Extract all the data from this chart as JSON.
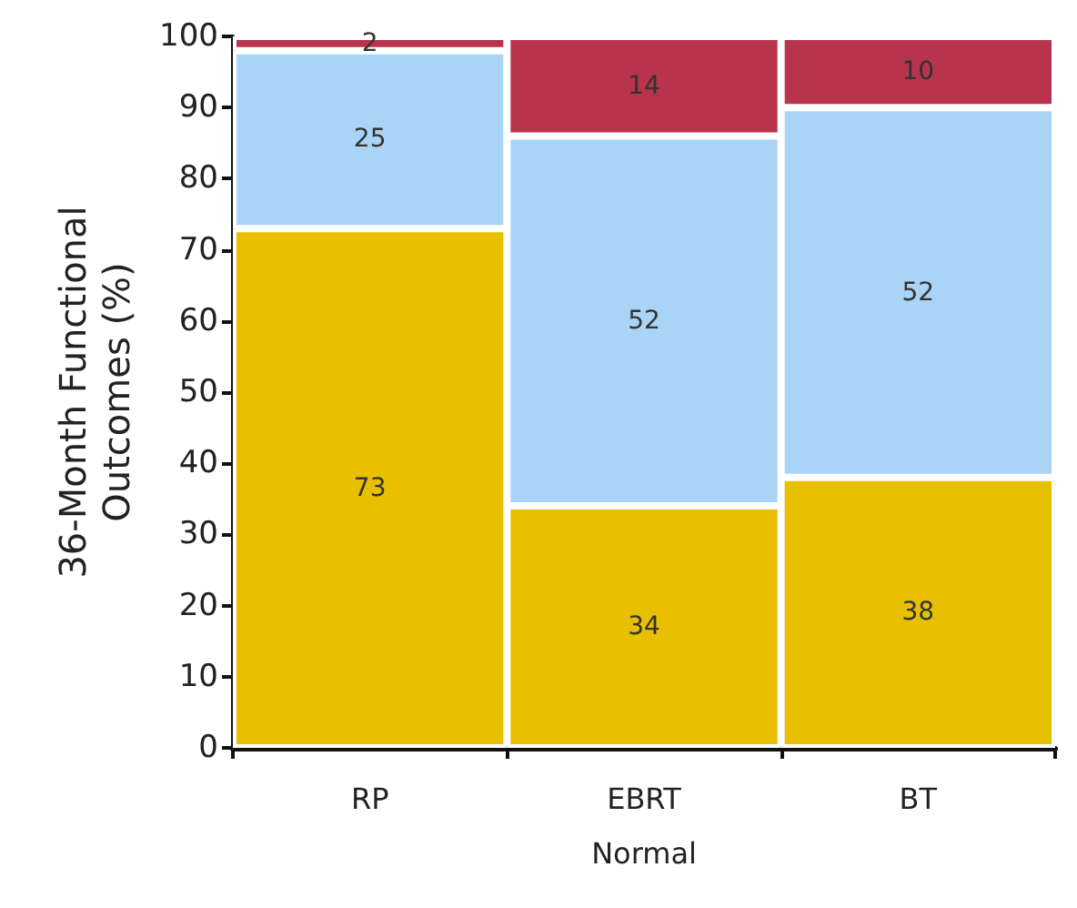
{
  "chart_data": {
    "type": "bar",
    "stacked": true,
    "data_labels": true,
    "ylabel": "36-Month Functional\nOutcomes (%)",
    "xlabel": "Normal",
    "categories": [
      "RP",
      "EBRT",
      "BT"
    ],
    "ylim": [
      0,
      100
    ],
    "yticks": [
      0,
      10,
      20,
      30,
      40,
      50,
      60,
      70,
      80,
      90,
      100
    ],
    "grid": false,
    "series": [
      {
        "color": "#e8c000",
        "values": [
          73,
          34,
          38
        ]
      },
      {
        "color": "#aad4f5",
        "values": [
          25,
          52,
          52
        ]
      },
      {
        "color": "#b8344c",
        "values": [
          2,
          14,
          10
        ]
      }
    ]
  }
}
